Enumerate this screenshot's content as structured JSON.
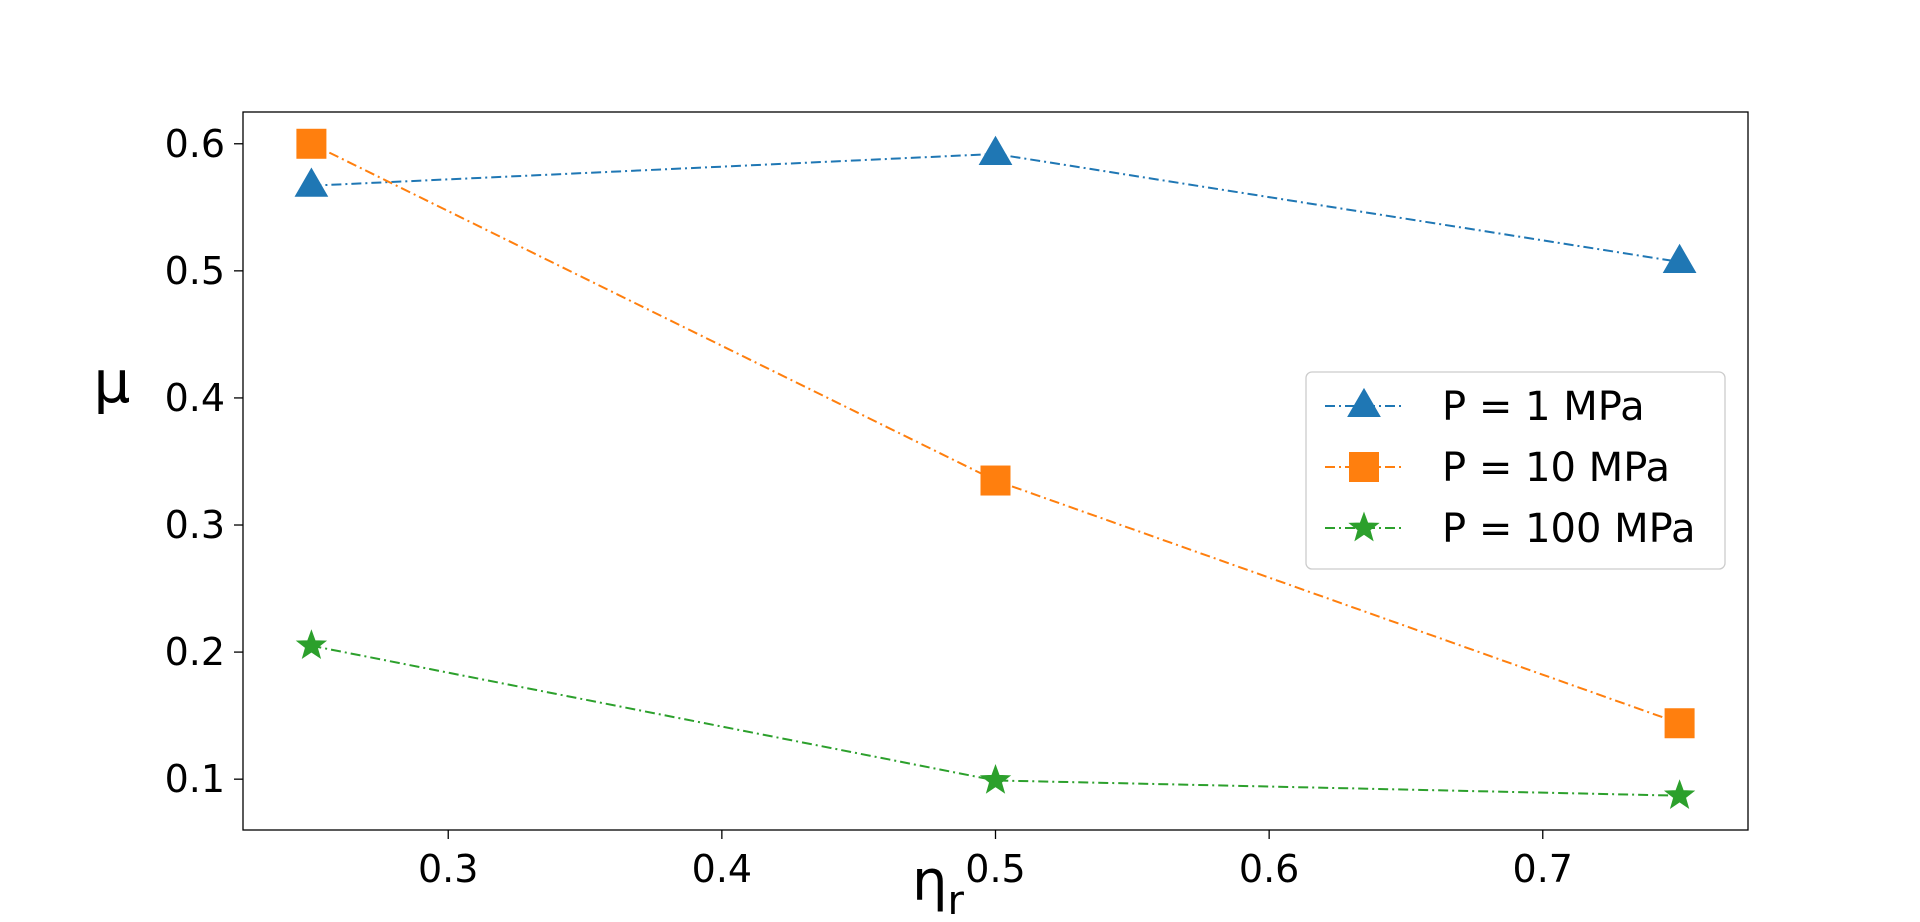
{
  "chart_data": {
    "type": "line",
    "title": "",
    "xlabel": "η",
    "xlabel_sub": "r",
    "ylabel": "μ",
    "xlim": [
      0.225,
      0.775
    ],
    "ylim": [
      0.06,
      0.625
    ],
    "xticks": [
      0.3,
      0.4,
      0.5,
      0.6,
      0.7
    ],
    "xtick_labels": [
      "0.3",
      "0.4",
      "0.5",
      "0.6",
      "0.7"
    ],
    "yticks": [
      0.1,
      0.2,
      0.3,
      0.4,
      0.5,
      0.6
    ],
    "ytick_labels": [
      "0.1",
      "0.2",
      "0.3",
      "0.4",
      "0.5",
      "0.6"
    ],
    "grid": false,
    "legend_position": "center-right",
    "x": [
      0.25,
      0.5,
      0.75
    ],
    "series": [
      {
        "name": "P = 1 MPa",
        "values": [
          0.567,
          0.592,
          0.507
        ],
        "color": "#1f77b4",
        "marker": "triangle"
      },
      {
        "name": "P = 10 MPa",
        "values": [
          0.6,
          0.335,
          0.144
        ],
        "color": "#ff7f0e",
        "marker": "square"
      },
      {
        "name": "P = 100 MPa",
        "values": [
          0.205,
          0.099,
          0.087
        ],
        "color": "#2ca02c",
        "marker": "star"
      }
    ]
  }
}
